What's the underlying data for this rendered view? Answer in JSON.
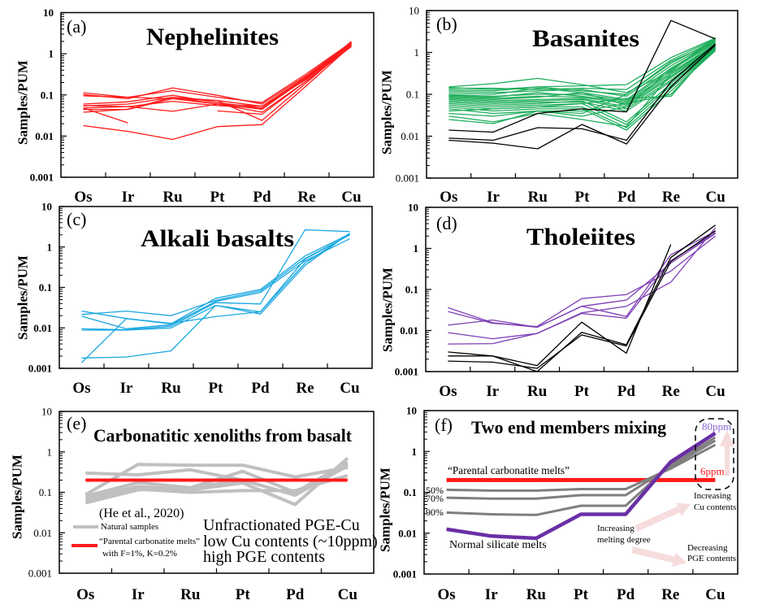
{
  "chart_data": [
    {
      "id": "a",
      "type": "line",
      "panel_label": "(a)",
      "title": "Nephelinites",
      "xlabel": "",
      "ylabel": "Samples/PUM",
      "yscale": "log",
      "ylim": [
        0.001,
        10
      ],
      "yticks": [
        "10",
        "1",
        "0.1",
        "0.01",
        "0.001"
      ],
      "grid": false,
      "categories": [
        "Os",
        "Ir",
        "Ru",
        "Pt",
        "Pd",
        "Re",
        "Cu"
      ],
      "series": [
        {
          "name": "nephelinite-1",
          "color": "#ff1a1a",
          "values": [
            0.113,
            0.088,
            0.127,
            0.088,
            0.065,
            0.33,
            1.9
          ]
        },
        {
          "name": "nephelinite-2",
          "color": "#ff1a1a",
          "values": [
            0.102,
            0.081,
            0.148,
            0.098,
            0.06,
            0.3,
            1.8
          ]
        },
        {
          "name": "nephelinite-3",
          "color": "#ff1a1a",
          "values": [
            0.095,
            0.088,
            0.081,
            0.073,
            0.053,
            0.28,
            1.7
          ]
        },
        {
          "name": "nephelinite-4",
          "color": "#ff1a1a",
          "values": [
            0.06,
            0.068,
            0.098,
            0.065,
            0.048,
            0.27,
            1.6
          ]
        },
        {
          "name": "nephelinite-5",
          "color": "#ff1a1a",
          "values": [
            0.054,
            0.06,
            0.088,
            0.06,
            0.045,
            0.26,
            1.9
          ]
        },
        {
          "name": "nephelinite-6",
          "color": "#ff1a1a",
          "values": [
            0.048,
            0.052,
            0.07,
            0.055,
            0.048,
            0.25,
            2.0
          ]
        },
        {
          "name": "nephelinite-7",
          "color": "#ff1a1a",
          "values": [
            0.0445,
            0.0445,
            0.081,
            0.06,
            0.038,
            0.22,
            1.5
          ]
        },
        {
          "name": "nephelinite-8",
          "color": "#ff1a1a",
          "values": [
            0.038,
            0.045,
            0.088,
            0.073,
            0.024,
            0.2,
            1.7
          ]
        },
        {
          "name": "nephelinite-9",
          "color": "#ff1a1a",
          "values": [
            0.055,
            0.052,
            0.04,
            0.06,
            0.053,
            0.24,
            1.8
          ]
        },
        {
          "name": "nephelinite-10",
          "color": "#ff1a1a",
          "values": [
            0.048,
            0.021,
            null,
            null,
            null,
            null,
            null
          ]
        },
        {
          "name": "nephelinite-11",
          "color": "#ff1a1a",
          "values": [
            0.018,
            0.013,
            0.0083,
            0.017,
            0.019,
            0.17,
            1.6
          ]
        },
        {
          "name": "nephelinite-12",
          "color": "#ff1a1a",
          "values": [
            null,
            null,
            null,
            0.041,
            0.034,
            0.22,
            1.75
          ]
        }
      ]
    },
    {
      "id": "b",
      "type": "line",
      "panel_label": "(b)",
      "title": "Basanites",
      "xlabel": "",
      "ylabel": "Samples/PUM",
      "yscale": "log",
      "ylim": [
        0.001,
        10
      ],
      "yticks": [
        "10",
        "1",
        "0.1",
        "0.01",
        "0.001"
      ],
      "grid": false,
      "categories": [
        "Os",
        "Ir",
        "Ru",
        "Pt",
        "Pd",
        "Re",
        "Cu"
      ],
      "series": [
        {
          "name": "basanite-1",
          "color": "#1fae5b",
          "values": [
            0.15,
            0.18,
            0.24,
            0.17,
            0.11,
            0.35,
            2.3
          ]
        },
        {
          "name": "basanite-2",
          "color": "#1fae5b",
          "values": [
            0.145,
            0.13,
            0.15,
            0.16,
            0.17,
            0.75,
            2.2
          ]
        },
        {
          "name": "basanite-3",
          "color": "#1fae5b",
          "values": [
            0.14,
            0.14,
            0.13,
            0.14,
            0.13,
            0.65,
            2.1
          ]
        },
        {
          "name": "basanite-4",
          "color": "#1fae5b",
          "values": [
            0.13,
            0.12,
            0.15,
            0.12,
            0.1,
            0.55,
            2.0
          ]
        },
        {
          "name": "basanite-5",
          "color": "#1fae5b",
          "values": [
            0.12,
            0.11,
            0.12,
            0.13,
            0.09,
            0.48,
            1.9
          ]
        },
        {
          "name": "basanite-6",
          "color": "#1fae5b",
          "values": [
            0.11,
            0.1,
            0.14,
            0.11,
            0.075,
            0.42,
            1.8
          ]
        },
        {
          "name": "basanite-7",
          "color": "#1fae5b",
          "values": [
            0.1,
            0.09,
            0.1,
            0.1,
            0.07,
            0.38,
            1.7
          ]
        },
        {
          "name": "basanite-8",
          "color": "#1fae5b",
          "values": [
            0.095,
            0.085,
            0.11,
            0.09,
            0.065,
            0.33,
            1.6
          ]
        },
        {
          "name": "basanite-9",
          "color": "#1fae5b",
          "values": [
            0.09,
            0.08,
            0.09,
            0.085,
            0.06,
            0.3,
            1.5
          ]
        },
        {
          "name": "basanite-10",
          "color": "#1fae5b",
          "values": [
            0.085,
            0.075,
            0.085,
            0.11,
            0.055,
            0.27,
            1.45
          ]
        },
        {
          "name": "basanite-11",
          "color": "#1fae5b",
          "values": [
            0.08,
            0.07,
            0.075,
            0.08,
            0.05,
            0.25,
            1.4
          ]
        },
        {
          "name": "basanite-12",
          "color": "#1fae5b",
          "values": [
            0.075,
            0.065,
            0.07,
            0.075,
            0.045,
            0.22,
            1.35
          ]
        },
        {
          "name": "basanite-13",
          "color": "#1fae5b",
          "values": [
            0.07,
            0.06,
            0.065,
            0.065,
            0.04,
            0.2,
            1.3
          ]
        },
        {
          "name": "basanite-14",
          "color": "#1fae5b",
          "values": [
            0.065,
            0.055,
            0.06,
            0.07,
            0.022,
            0.18,
            1.25
          ]
        },
        {
          "name": "basanite-15",
          "color": "#1fae5b",
          "values": [
            0.06,
            0.05,
            0.055,
            0.06,
            0.019,
            0.16,
            1.2
          ]
        },
        {
          "name": "basanite-16",
          "color": "#1fae5b",
          "values": [
            0.055,
            0.045,
            0.05,
            0.05,
            0.016,
            0.14,
            1.15
          ]
        },
        {
          "name": "basanite-17",
          "color": "#1fae5b",
          "values": [
            0.05,
            0.04,
            0.045,
            0.045,
            0.014,
            0.12,
            1.1
          ]
        },
        {
          "name": "basanite-18",
          "color": "#1fae5b",
          "values": [
            0.045,
            0.035,
            0.04,
            0.04,
            0.06,
            0.1,
            1.3
          ]
        },
        {
          "name": "basanite-19",
          "color": "#1fae5b",
          "values": [
            0.04,
            0.045,
            0.05,
            0.06,
            0.08,
            0.09,
            1.5
          ]
        },
        {
          "name": "basanite-20",
          "color": "#1fae5b",
          "values": [
            0.035,
            0.03,
            0.04,
            0.035,
            0.1,
            0.6,
            1.8
          ]
        },
        {
          "name": "basanite-21",
          "color": "#1fae5b",
          "values": [
            0.03,
            0.022,
            0.035,
            0.025,
            0.017,
            0.3,
            1.6
          ]
        },
        {
          "name": "basanite-22",
          "color": "#1fae5b",
          "values": [
            0.025,
            0.02,
            0.04,
            0.03,
            0.05,
            0.4,
            2.0
          ]
        },
        {
          "name": "basanite-black-1",
          "color": "#000000",
          "values": [
            0.014,
            0.0125,
            0.035,
            0.045,
            0.038,
            5.8,
            2.1
          ]
        },
        {
          "name": "basanite-black-2",
          "color": "#000000",
          "values": [
            0.009,
            0.008,
            0.016,
            0.015,
            0.008,
            0.2,
            1.6
          ]
        },
        {
          "name": "basanite-black-3",
          "color": "#000000",
          "values": [
            0.008,
            0.0068,
            0.005,
            0.019,
            0.0065,
            0.15,
            1.5
          ]
        }
      ]
    },
    {
      "id": "c",
      "type": "line",
      "panel_label": "(c)",
      "title": "Alkali basalts",
      "xlabel": "",
      "ylabel": "Samples/PUM",
      "yscale": "log",
      "ylim": [
        0.001,
        10
      ],
      "yticks": [
        "10",
        "1",
        "0.1",
        "0.01",
        "0.001"
      ],
      "grid": false,
      "categories": [
        "Os",
        "Ir",
        "Ru",
        "Pt",
        "Pd",
        "Re",
        "Cu"
      ],
      "series": [
        {
          "name": "alkali-basalt-1",
          "color": "#1ba7e0",
          "values": [
            0.026,
            0.017,
            0.0126,
            0.054,
            0.089,
            0.6,
            2.1
          ]
        },
        {
          "name": "alkali-basalt-2",
          "color": "#1ba7e0",
          "values": [
            0.0215,
            0.026,
            0.02,
            0.048,
            0.082,
            0.52,
            2.0
          ]
        },
        {
          "name": "alkali-basalt-3",
          "color": "#1ba7e0",
          "values": [
            0.0193,
            0.0095,
            0.012,
            0.045,
            0.075,
            0.45,
            1.6
          ]
        },
        {
          "name": "alkali-basalt-4",
          "color": "#1ba7e0",
          "values": [
            0.0095,
            0.009,
            0.011,
            0.042,
            0.039,
            2.65,
            2.4
          ]
        },
        {
          "name": "alkali-basalt-5",
          "color": "#1ba7e0",
          "values": [
            0.0088,
            0.0088,
            0.01,
            0.036,
            0.025,
            0.4,
            2.1
          ]
        },
        {
          "name": "alkali-basalt-6",
          "color": "#1ba7e0",
          "values": [
            0.0018,
            0.0019,
            0.0027,
            0.036,
            0.022,
            0.35,
            2.2
          ]
        },
        {
          "name": "alkali-basalt-7",
          "color": "#1ba7e0",
          "values": [
            0.00138,
            0.017,
            0.013,
            0.019,
            0.025,
            0.5,
            2.0
          ]
        }
      ]
    },
    {
      "id": "d",
      "type": "line",
      "panel_label": "(d)",
      "title": "Tholeiites",
      "xlabel": "",
      "ylabel": "Samples/PUM",
      "yscale": "log",
      "ylim": [
        0.001,
        10
      ],
      "yticks": [
        "10",
        "1",
        "0.1",
        "0.01",
        "0.001"
      ],
      "grid": false,
      "categories": [
        "Os",
        "Ir",
        "Ru",
        "Pt",
        "Pd",
        "Re",
        "Cu"
      ],
      "series": [
        {
          "name": "tholeiite-1",
          "color": "#7d3fb5",
          "values": [
            0.036,
            0.0155,
            0.012,
            0.039,
            0.022,
            0.7,
            2.6
          ]
        },
        {
          "name": "tholeiite-2",
          "color": "#7d3fb5",
          "values": [
            0.029,
            0.015,
            0.0125,
            0.06,
            0.075,
            0.28,
            2.0
          ]
        },
        {
          "name": "tholeiite-3",
          "color": "#7d3fb5",
          "values": [
            0.0135,
            0.018,
            0.012,
            0.039,
            0.055,
            0.44,
            2.3
          ]
        },
        {
          "name": "tholeiite-4",
          "color": "#7d3fb5",
          "values": [
            0.0089,
            0.0063,
            0.0085,
            0.027,
            0.039,
            0.15,
            3.2
          ]
        },
        {
          "name": "tholeiite-5",
          "color": "#7d3fb5",
          "values": [
            0.0047,
            0.0048,
            0.0085,
            0.026,
            0.02,
            0.5,
            2.4
          ]
        },
        {
          "name": "tholeiite-black-1",
          "color": "#000000",
          "values": [
            0.003,
            0.0024,
            0.0014,
            0.016,
            0.0028,
            1.25,
            null
          ]
        },
        {
          "name": "tholeiite-black-2",
          "color": "#000000",
          "values": [
            0.0024,
            0.0024,
            0.001,
            0.009,
            0.0045,
            0.6,
            3.7
          ]
        },
        {
          "name": "tholeiite-black-3",
          "color": "#000000",
          "values": [
            0.0018,
            0.0017,
            0.0012,
            0.0078,
            0.0042,
            0.48,
            2.7
          ]
        }
      ]
    },
    {
      "id": "e",
      "type": "line",
      "panel_label": "(e)",
      "title": "Carbonatitic xenoliths from basalt",
      "xlabel": "",
      "ylabel": "Samples/PUM",
      "yscale": "log",
      "ylim": [
        0.001,
        10
      ],
      "yticks": [
        "10",
        "1",
        "0.1",
        "0.01",
        "0.001"
      ],
      "grid": false,
      "legend_position": "bottom-left",
      "categories": [
        "Os",
        "Ir",
        "Ru",
        "Pt",
        "Pd",
        "Cu"
      ],
      "series": [
        {
          "name": "Natural samples",
          "color": "#c0c0c0",
          "values": [
            0.3,
            0.27,
            0.36,
            0.2,
            0.085,
            0.45
          ]
        },
        {
          "name": "Natural samples",
          "color": "#c0c0c0",
          "values": [
            0.088,
            0.49,
            0.47,
            0.47,
            0.24,
            0.41
          ]
        },
        {
          "name": "Natural samples",
          "color": "#c0c0c0",
          "values": [
            0.08,
            0.175,
            0.13,
            0.33,
            0.1,
            0.55
          ]
        },
        {
          "name": "Natural samples",
          "color": "#c0c0c0",
          "values": [
            0.072,
            0.14,
            0.115,
            0.17,
            0.05,
            0.7
          ]
        },
        {
          "name": "Natural samples",
          "color": "#c0c0c0",
          "values": [
            0.065,
            0.12,
            0.1,
            0.11,
            0.11,
            0.26
          ]
        },
        {
          "name": "Natural samples",
          "color": "#c0c0c0",
          "values": [
            0.055,
            0.115,
            0.13,
            0.2,
            0.085,
            0.5
          ]
        },
        {
          "name": "Parental carbonatite melts",
          "color": "#ff1a1a",
          "values": [
            0.2,
            0.2,
            0.2,
            0.2,
            0.2,
            0.2
          ]
        }
      ],
      "annotations": {
        "citation": "(He et al., 2020)",
        "legend": [
          {
            "label": "Natural samples",
            "color": "#c0c0c0"
          },
          {
            "label": "“Parental carbonatite melts”",
            "label2": "with F=1%, K=0.2%",
            "color": "#ff1a1a"
          }
        ],
        "note_lines": [
          "Unfractionated PGE-Cu",
          "low Cu contents (~10ppm)",
          "high PGE contents"
        ]
      }
    },
    {
      "id": "f",
      "type": "line",
      "panel_label": "(f)",
      "title": "Two end members mixing",
      "xlabel": "",
      "ylabel": "Samples/PUM",
      "yscale": "log",
      "ylim": [
        0.001,
        10
      ],
      "yticks": [
        "10",
        "1",
        "0.1",
        "0.01",
        "0.001"
      ],
      "grid": false,
      "categories": [
        "Os",
        "Ir",
        "Ru",
        "Pt",
        "Pd",
        "Re",
        "Cu"
      ],
      "series": [
        {
          "name": "Parental carbonatite melts",
          "color": "#ff1a1a",
          "values": [
            0.2,
            0.2,
            0.2,
            0.2,
            0.2,
            0.2,
            0.2
          ]
        },
        {
          "name": "50%",
          "color": "#7f7f7f",
          "values": [
            0.115,
            0.11,
            0.11,
            0.12,
            0.12,
            0.38,
            1.45
          ]
        },
        {
          "name": "70%",
          "color": "#7f7f7f",
          "values": [
            0.074,
            0.07,
            0.07,
            0.085,
            0.085,
            0.42,
            1.85
          ]
        },
        {
          "name": "90%",
          "color": "#7f7f7f",
          "values": [
            0.032,
            0.029,
            0.028,
            0.047,
            0.047,
            0.47,
            2.2
          ]
        },
        {
          "name": "Normal silicate melts",
          "color": "#6a2fa5",
          "values": [
            0.0125,
            0.0085,
            0.0075,
            0.029,
            0.029,
            0.55,
            2.8
          ]
        }
      ],
      "annotations": {
        "parental_label": "“Parental carbonatite melts”",
        "percent_labels": [
          "50%",
          "70%",
          "90%"
        ],
        "silicate_label": "Normal silicate melts",
        "cu_high_label": "80ppm",
        "cu_high_color": "#8a63d2",
        "cu_low_label": "6ppm",
        "cu_low_color": "#ff1a1a",
        "arrow_melting": [
          "Increasing",
          "melting degree"
        ],
        "arrow_cu": [
          "Increasing",
          "Cu contents"
        ],
        "arrow_pge": [
          "Decreasing",
          "PGE contents"
        ],
        "arrow_color": "#f6dcdc"
      }
    }
  ]
}
